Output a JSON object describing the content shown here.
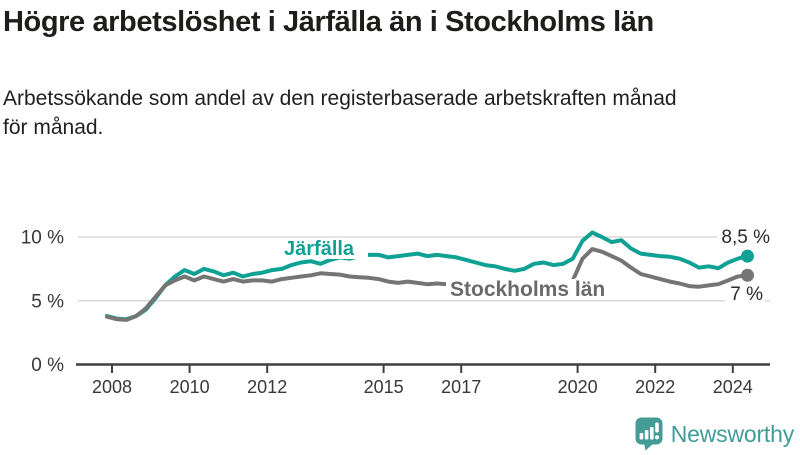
{
  "header": {
    "title": "Högre arbetslöshet i Järfälla än i Stockholms län",
    "subtitle": "Arbetssökande som andel av den registerbaserade arbetskraften månad för månad."
  },
  "chart_data": {
    "type": "line",
    "title": "Högre arbetslöshet i Järfälla än i Stockholms län",
    "subtitle": "Arbetssökande som andel av den registerbaserade arbetskraften månad för månad.",
    "x_range": [
      2008,
      2024.4
    ],
    "ylim": [
      0,
      10.8
    ],
    "grid": "horizontal",
    "legend_position": "inline-labels",
    "x_ticks": [
      2008,
      2010,
      2012,
      2015,
      2017,
      2020,
      2022,
      2024
    ],
    "y_ticks": [
      {
        "value": 0,
        "label": "0 %"
      },
      {
        "value": 5,
        "label": "5 %"
      },
      {
        "value": 10,
        "label": "10 %"
      }
    ],
    "points_per_year": 4,
    "series": [
      {
        "name": "Järfälla",
        "color": "#0fa194",
        "end_label": "8,5 %",
        "end_value": 8.5,
        "values": [
          3.8,
          3.6,
          3.55,
          3.8,
          4.3,
          5.2,
          6.2,
          6.9,
          7.4,
          7.1,
          7.5,
          7.3,
          7.0,
          7.2,
          6.9,
          7.1,
          7.2,
          7.4,
          7.5,
          7.8,
          8.0,
          8.1,
          7.9,
          8.2,
          8.4,
          8.3,
          8.5,
          8.6,
          8.6,
          8.4,
          8.5,
          8.6,
          8.7,
          8.5,
          8.6,
          8.5,
          8.4,
          8.2,
          8.0,
          7.8,
          7.7,
          7.5,
          7.35,
          7.5,
          7.9,
          8.0,
          7.8,
          7.9,
          8.3,
          9.7,
          10.35,
          10.0,
          9.6,
          9.75,
          9.1,
          8.7,
          8.6,
          8.5,
          8.45,
          8.3,
          8.0,
          7.6,
          7.7,
          7.55,
          8.0,
          8.3,
          8.5
        ]
      },
      {
        "name": "Stockholms län",
        "color": "#757575",
        "end_label": "7 %",
        "end_value": 7,
        "values": [
          3.75,
          3.55,
          3.5,
          3.8,
          4.4,
          5.3,
          6.2,
          6.6,
          6.9,
          6.6,
          6.9,
          6.7,
          6.5,
          6.7,
          6.5,
          6.6,
          6.6,
          6.5,
          6.7,
          6.8,
          6.9,
          7.0,
          7.15,
          7.1,
          7.05,
          6.9,
          6.85,
          6.8,
          6.7,
          6.5,
          6.4,
          6.5,
          6.4,
          6.3,
          6.35,
          6.3,
          6.3,
          6.2,
          6.25,
          6.2,
          6.2,
          6.1,
          6.0,
          6.1,
          6.2,
          6.3,
          6.2,
          6.3,
          6.6,
          8.3,
          9.05,
          8.85,
          8.5,
          8.15,
          7.6,
          7.1,
          6.9,
          6.7,
          6.5,
          6.35,
          6.15,
          6.1,
          6.2,
          6.3,
          6.6,
          6.9,
          7.0
        ]
      }
    ]
  },
  "branding": {
    "logo_text": "Newsworthy",
    "accent_color": "#459c96"
  }
}
